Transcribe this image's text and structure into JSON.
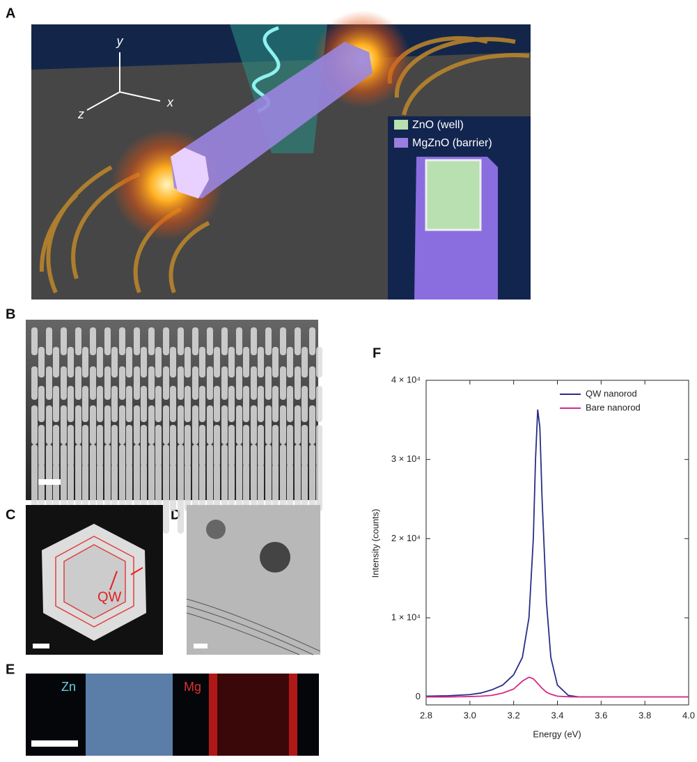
{
  "panel_labels": [
    "A",
    "B",
    "C",
    "D",
    "E",
    "F"
  ],
  "panel_a": {
    "axes": [
      "y",
      "x",
      "z"
    ],
    "legend": [
      "ZnO (well)",
      "MgZnO (barrier)"
    ]
  },
  "panel_c": {
    "annotation": "QW"
  },
  "panel_e": {
    "maps": [
      "Zn",
      "Mg"
    ]
  },
  "chart_data": {
    "type": "line",
    "x_label": "Energy (eV)",
    "y_label": "Intensity (counts)",
    "x": [
      2.8,
      2.9,
      3.0,
      3.05,
      3.1,
      3.15,
      3.2,
      3.24,
      3.27,
      3.29,
      3.3,
      3.31,
      3.32,
      3.33,
      3.35,
      3.37,
      3.4,
      3.45,
      3.5,
      3.6,
      3.8,
      4.0
    ],
    "series": [
      {
        "name": "QW nanorod",
        "color": "#2a2c86",
        "values": [
          100,
          150,
          300,
          500,
          900,
          1500,
          2800,
          5000,
          10000,
          20000,
          30000,
          36300,
          34000,
          25000,
          12000,
          5000,
          1500,
          200,
          0,
          0,
          0,
          0
        ]
      },
      {
        "name": "Bare nanorod",
        "color": "#d42a86",
        "values": [
          0,
          0,
          50,
          100,
          200,
          500,
          1000,
          2000,
          2500,
          2300,
          2000,
          1700,
          1400,
          1100,
          600,
          350,
          100,
          30,
          0,
          0,
          0,
          0
        ]
      }
    ],
    "xlim": [
      2.8,
      4.0
    ],
    "xticks": [
      2.8,
      {
        "value": 3,
        "label": "3.0"
      },
      3.2,
      3.4,
      3.6,
      3.8,
      {
        "value": 4,
        "label": "4.0"
      }
    ],
    "ylim": [
      -1000,
      40000
    ],
    "yticks": [
      0,
      {
        "value": 10000,
        "label": "1 × 10⁴"
      },
      {
        "value": 20000,
        "label": "2 × 10⁴"
      },
      {
        "value": 30000,
        "label": "3 × 10⁴"
      },
      {
        "value": 40000,
        "label": "4 × 10⁴"
      }
    ],
    "legend": "upper right"
  }
}
